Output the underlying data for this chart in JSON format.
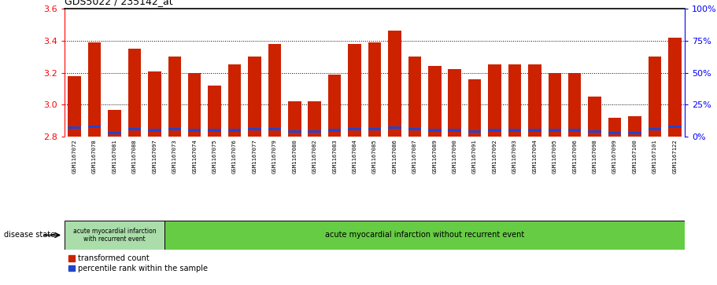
{
  "title": "GDS5022 / 235142_at",
  "samples": [
    "GSM1167072",
    "GSM1167078",
    "GSM1167081",
    "GSM1167088",
    "GSM1167097",
    "GSM1167073",
    "GSM1167074",
    "GSM1167075",
    "GSM1167076",
    "GSM1167077",
    "GSM1167079",
    "GSM1167080",
    "GSM1167082",
    "GSM1167083",
    "GSM1167084",
    "GSM1167085",
    "GSM1167086",
    "GSM1167087",
    "GSM1167089",
    "GSM1167090",
    "GSM1167091",
    "GSM1167092",
    "GSM1167093",
    "GSM1167094",
    "GSM1167095",
    "GSM1167096",
    "GSM1167098",
    "GSM1167099",
    "GSM1167100",
    "GSM1167101",
    "GSM1167122"
  ],
  "red_values": [
    3.18,
    3.39,
    2.97,
    3.35,
    3.21,
    3.3,
    3.2,
    3.12,
    3.25,
    3.3,
    3.38,
    3.02,
    3.02,
    3.19,
    3.38,
    3.39,
    3.46,
    3.3,
    3.24,
    3.22,
    3.16,
    3.25,
    3.25,
    3.25,
    3.2,
    3.2,
    3.05,
    2.92,
    2.93,
    3.3,
    3.42
  ],
  "blue_percentiles": [
    7,
    8,
    3,
    6,
    5,
    6,
    5,
    5,
    5,
    6,
    6,
    4,
    4,
    5,
    6,
    6,
    7,
    6,
    5,
    5,
    4,
    5,
    5,
    5,
    5,
    5,
    4,
    3,
    3,
    6,
    8
  ],
  "ylim_left": [
    2.8,
    3.6
  ],
  "ylim_right": [
    0,
    100
  ],
  "yticks_left": [
    2.8,
    3.0,
    3.2,
    3.4,
    3.6
  ],
  "yticks_right": [
    0,
    25,
    50,
    75,
    100
  ],
  "bar_color": "#cc2200",
  "blue_color": "#2244cc",
  "group1_count": 5,
  "group1_label": "acute myocardial infarction\nwith recurrent event",
  "group2_label": "acute myocardial infarction without recurrent event",
  "legend_red": "transformed count",
  "legend_blue": "percentile rank within the sample",
  "disease_state_label": "disease state",
  "group1_color": "#aaddaa",
  "group2_color": "#66cc44",
  "xtick_bg": "#cccccc"
}
